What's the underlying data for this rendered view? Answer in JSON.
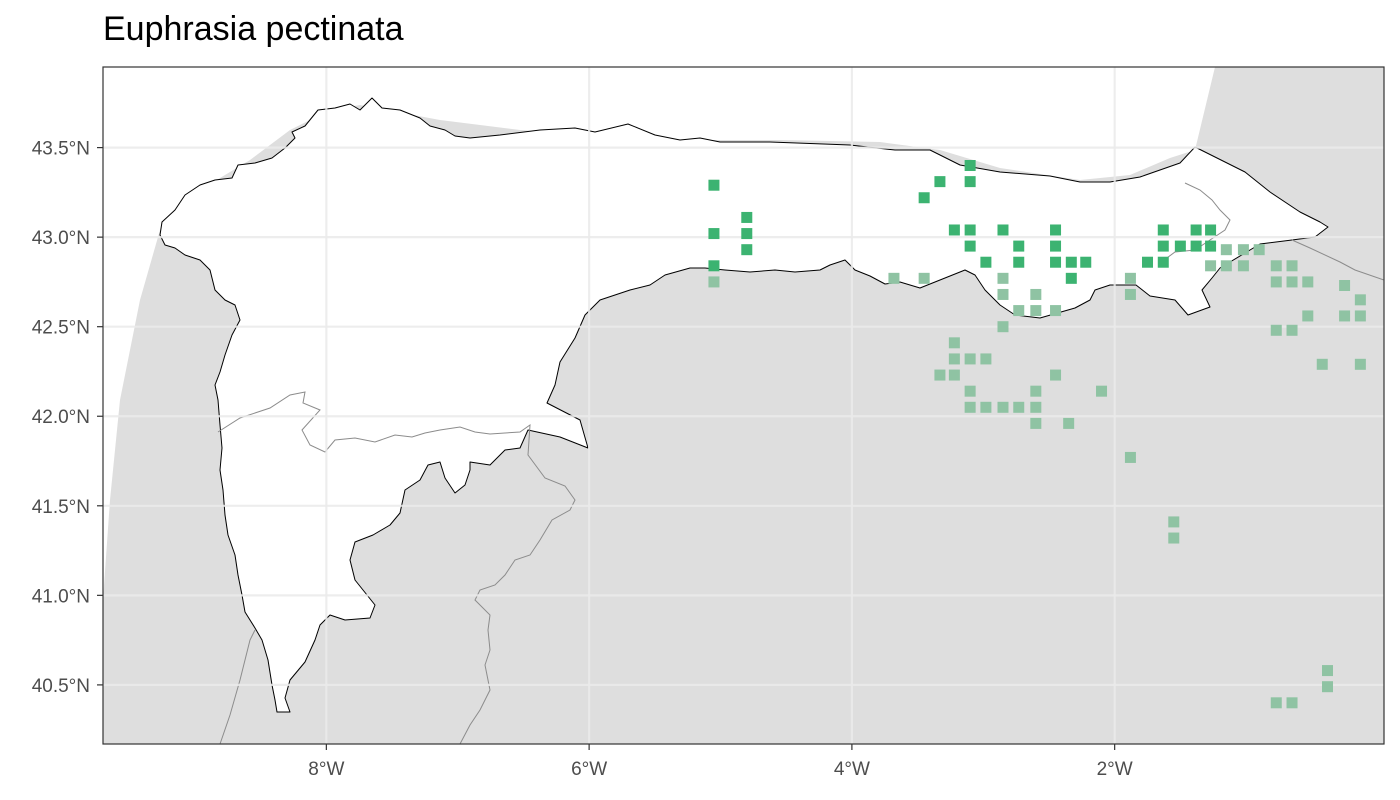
{
  "title": "Euphrasia pectinata",
  "colors": {
    "panel_background": "#dedede",
    "region_fill": "#ffffff",
    "region_border": "#000000",
    "gridline": "#ebebeb",
    "boundary_line": "#8c8c8c",
    "point_present": "#3cb371",
    "point_other": "#8fc3a3"
  },
  "chart_data": {
    "type": "scatter",
    "title": "Euphrasia pectinata",
    "xlabel": "",
    "ylabel": "",
    "xlim": [
      -9.7,
      0.05
    ],
    "ylim": [
      40.17,
      43.95
    ],
    "x_ticks": [
      -8,
      -6,
      -4,
      -2
    ],
    "x_tick_labels": [
      "8°W",
      "6°W",
      "4°W",
      "2°W"
    ],
    "y_ticks": [
      40.5,
      41.0,
      41.5,
      42.0,
      42.5,
      43.0,
      43.5
    ],
    "y_tick_labels": [
      "40.5°N",
      "41.0°N",
      "41.5°N",
      "42.0°N",
      "42.5°N",
      "43.0°N",
      "43.5°N"
    ],
    "grid": true,
    "legend": "none",
    "series": [
      {
        "points": [
          [
            -5.05,
            43.29
          ],
          [
            -5.05,
            43.02
          ],
          [
            -5.05,
            42.84
          ],
          [
            -4.8,
            43.11
          ],
          [
            -4.8,
            43.02
          ],
          [
            -4.8,
            42.93
          ],
          [
            -3.45,
            43.22
          ],
          [
            -3.33,
            43.31
          ],
          [
            -3.1,
            43.4
          ],
          [
            -3.1,
            43.31
          ],
          [
            -3.22,
            43.04
          ],
          [
            -3.1,
            43.04
          ],
          [
            -3.1,
            42.95
          ],
          [
            -2.98,
            42.86
          ],
          [
            -2.85,
            43.04
          ],
          [
            -2.73,
            42.95
          ],
          [
            -2.73,
            42.86
          ],
          [
            -2.45,
            43.04
          ],
          [
            -2.45,
            42.95
          ],
          [
            -2.45,
            42.86
          ],
          [
            -2.33,
            42.86
          ],
          [
            -2.22,
            42.86
          ],
          [
            -2.33,
            42.77
          ],
          [
            -1.63,
            43.04
          ],
          [
            -1.63,
            42.95
          ],
          [
            -1.5,
            42.95
          ],
          [
            -1.38,
            43.04
          ],
          [
            -1.38,
            42.95
          ],
          [
            -1.27,
            43.04
          ],
          [
            -1.27,
            42.95
          ],
          [
            -1.63,
            42.86
          ],
          [
            -1.75,
            42.86
          ]
        ]
      },
      {
        "points": [
          [
            -5.05,
            42.75
          ],
          [
            -3.68,
            42.77
          ],
          [
            -3.45,
            42.77
          ],
          [
            -2.85,
            42.77
          ],
          [
            -2.85,
            42.68
          ],
          [
            -2.73,
            42.59
          ],
          [
            -2.6,
            42.68
          ],
          [
            -2.6,
            42.59
          ],
          [
            -2.45,
            42.59
          ],
          [
            -2.85,
            42.5
          ],
          [
            -3.22,
            42.41
          ],
          [
            -3.22,
            42.32
          ],
          [
            -3.1,
            42.32
          ],
          [
            -2.98,
            42.32
          ],
          [
            -3.33,
            42.23
          ],
          [
            -3.22,
            42.23
          ],
          [
            -3.1,
            42.14
          ],
          [
            -3.1,
            42.05
          ],
          [
            -2.98,
            42.05
          ],
          [
            -2.85,
            42.05
          ],
          [
            -2.73,
            42.05
          ],
          [
            -2.6,
            42.05
          ],
          [
            -2.6,
            41.96
          ],
          [
            -2.6,
            42.14
          ],
          [
            -2.45,
            42.23
          ],
          [
            -2.35,
            41.96
          ],
          [
            -2.1,
            42.14
          ],
          [
            -1.88,
            42.77
          ],
          [
            -1.88,
            42.68
          ],
          [
            -1.88,
            41.77
          ],
          [
            -1.55,
            41.41
          ],
          [
            -1.55,
            41.32
          ],
          [
            -1.15,
            42.93
          ],
          [
            -1.15,
            42.84
          ],
          [
            -1.02,
            42.93
          ],
          [
            -1.02,
            42.84
          ],
          [
            -0.9,
            42.93
          ],
          [
            -1.27,
            42.84
          ],
          [
            -0.77,
            42.84
          ],
          [
            -0.65,
            42.84
          ],
          [
            -0.77,
            42.75
          ],
          [
            -0.65,
            42.75
          ],
          [
            -0.53,
            42.75
          ],
          [
            -0.25,
            42.73
          ],
          [
            -0.77,
            42.48
          ],
          [
            -0.65,
            42.48
          ],
          [
            -0.53,
            42.56
          ],
          [
            -0.25,
            42.56
          ],
          [
            -0.13,
            42.56
          ],
          [
            -0.13,
            42.65
          ],
          [
            -0.42,
            42.29
          ],
          [
            -0.13,
            42.29
          ],
          [
            -0.38,
            40.58
          ],
          [
            -0.38,
            40.49
          ],
          [
            -0.65,
            40.4
          ],
          [
            -0.77,
            40.4
          ]
        ]
      }
    ]
  }
}
